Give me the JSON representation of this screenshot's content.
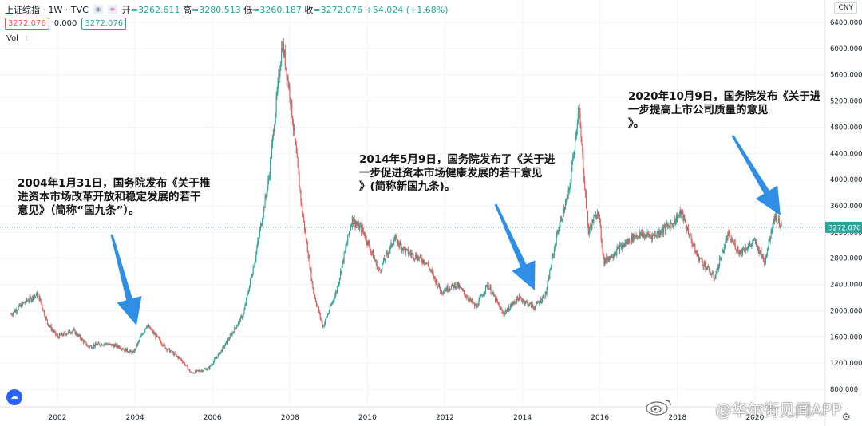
{
  "legend": {
    "symbol": "上证综指 · 1W · TVC",
    "open_label": "开",
    "open": "=3262.611",
    "high_label": "高",
    "high": "=3280.513",
    "low_label": "低",
    "low": "=3260.187",
    "close_label": "收",
    "close": "=3272.076",
    "change": "+54.024 (+1.68%)",
    "box_left": "3272.076",
    "box_mid": "0.000",
    "box_right": "3272.076",
    "vol": "Vol",
    "vol_warn": "!"
  },
  "currency": "CNY",
  "last_price": "3272.076",
  "annotations": {
    "a2004": [
      "2004年1月31日，国务院发布《关于推",
      "进资本市场改革开放和稳定发展的若干",
      "意见》（简称“国九条”）。"
    ],
    "a2014": [
      "2014年5月9日，国务院发布了《关于进",
      "一步促进资本市场健康发展的若干意见",
      "》(简称新国九条)。"
    ],
    "a2020": [
      "2020年10月9日，国务院发布《关于进",
      "一步提高上市公司质量的意见",
      "》。"
    ]
  },
  "watermark": "@华尔街见闻APP",
  "colors": {
    "up": "#26a69a",
    "down": "#ef5350",
    "arrow": "#2f8fe6",
    "grid": "#f0f3fa"
  },
  "chart_data": {
    "type": "candlestick",
    "title": "上证综指 · 1W · TVC",
    "ylim": [
      800,
      6400
    ],
    "yticks": [
      800,
      1200,
      1600,
      2000,
      2400,
      2800,
      3200,
      3600,
      4000,
      4400,
      4800,
      5200,
      5600,
      6000,
      6400
    ],
    "ytick_labels": [
      "800.000",
      "1200.000",
      "1600.000",
      "2000.000",
      "2400.000",
      "2800.000",
      "3200.000",
      "3600.000",
      "4000.000",
      "4400.000",
      "4800.000",
      "5200.000",
      "5600.000",
      "6000.000",
      "6400.000"
    ],
    "xlim": [
      2000.8,
      2020.7
    ],
    "xticks": [
      2002,
      2004,
      2006,
      2008,
      2010,
      2012,
      2014,
      2016,
      2018,
      2020
    ],
    "xtick_labels": [
      "2002",
      "2004",
      "2006",
      "2008",
      "2010",
      "2012",
      "2014",
      "2016",
      "2018",
      "2020"
    ],
    "last_value": 3272.076,
    "path": [
      [
        2000.8,
        1950
      ],
      [
        2001.2,
        2150
      ],
      [
        2001.5,
        2250
      ],
      [
        2001.75,
        1800
      ],
      [
        2002.0,
        1600
      ],
      [
        2002.4,
        1700
      ],
      [
        2002.8,
        1450
      ],
      [
        2003.2,
        1500
      ],
      [
        2003.6,
        1450
      ],
      [
        2003.95,
        1350
      ],
      [
        2004.3,
        1780
      ],
      [
        2004.8,
        1430
      ],
      [
        2005.2,
        1250
      ],
      [
        2005.45,
        1050
      ],
      [
        2005.9,
        1120
      ],
      [
        2006.3,
        1450
      ],
      [
        2006.8,
        1950
      ],
      [
        2007.1,
        2800
      ],
      [
        2007.45,
        4000
      ],
      [
        2007.8,
        6100
      ],
      [
        2008.0,
        5300
      ],
      [
        2008.3,
        3600
      ],
      [
        2008.6,
        2300
      ],
      [
        2008.85,
        1750
      ],
      [
        2009.2,
        2300
      ],
      [
        2009.6,
        3400
      ],
      [
        2009.9,
        3200
      ],
      [
        2010.3,
        2600
      ],
      [
        2010.7,
        3100
      ],
      [
        2011.0,
        2900
      ],
      [
        2011.5,
        2750
      ],
      [
        2011.9,
        2300
      ],
      [
        2012.3,
        2400
      ],
      [
        2012.8,
        2050
      ],
      [
        2013.1,
        2400
      ],
      [
        2013.5,
        1950
      ],
      [
        2013.9,
        2200
      ],
      [
        2014.3,
        2050
      ],
      [
        2014.6,
        2250
      ],
      [
        2014.9,
        3200
      ],
      [
        2015.2,
        3800
      ],
      [
        2015.45,
        5100
      ],
      [
        2015.7,
        3200
      ],
      [
        2015.95,
        3550
      ],
      [
        2016.1,
        2750
      ],
      [
        2016.5,
        2950
      ],
      [
        2016.9,
        3150
      ],
      [
        2017.4,
        3150
      ],
      [
        2017.9,
        3350
      ],
      [
        2018.1,
        3500
      ],
      [
        2018.5,
        2850
      ],
      [
        2018.95,
        2500
      ],
      [
        2019.3,
        3150
      ],
      [
        2019.6,
        2900
      ],
      [
        2020.0,
        3050
      ],
      [
        2020.25,
        2750
      ],
      [
        2020.5,
        3450
      ],
      [
        2020.7,
        3272
      ]
    ]
  }
}
